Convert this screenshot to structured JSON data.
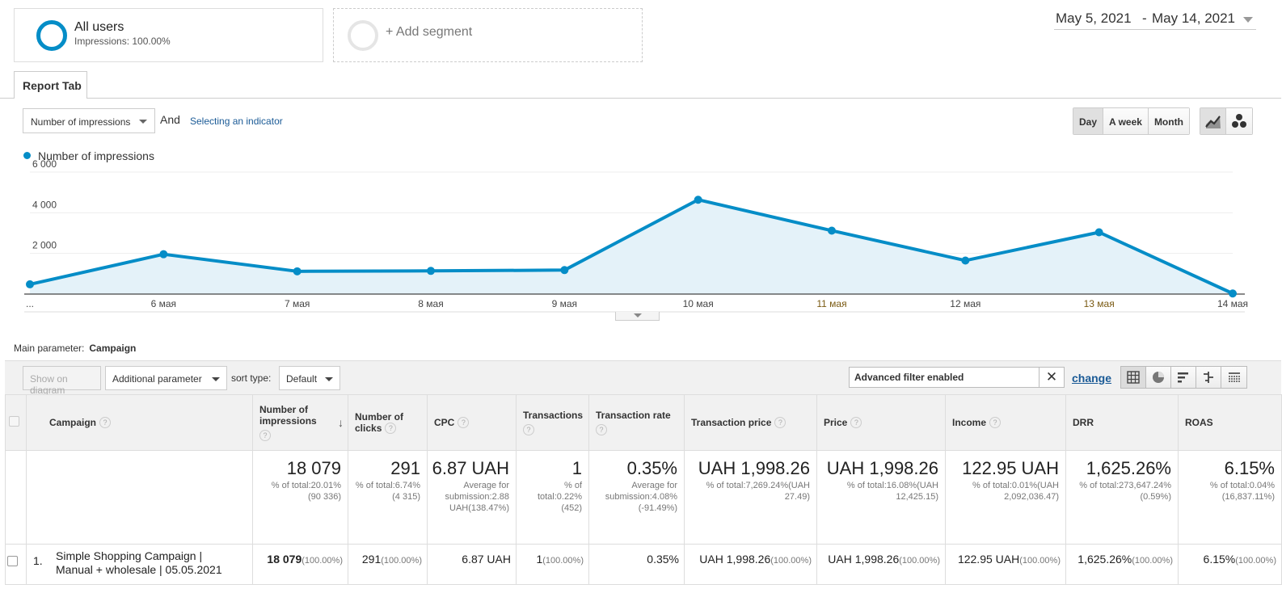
{
  "segments": {
    "all_users": {
      "title": "All users",
      "subtitle": "Impressions: 100.00%"
    },
    "add_segment": {
      "label": "+ Add segment"
    }
  },
  "date_range": {
    "start": "May 5, 2021",
    "separator": "-",
    "end": "May 14, 2021"
  },
  "tabs": {
    "report": "Report Tab"
  },
  "chart_controls": {
    "metric": "Number of impressions",
    "and_label": "And",
    "select_indicator": "Selecting an indicator",
    "periods": [
      "Day",
      "A week",
      "Month"
    ],
    "active_period": "Day"
  },
  "chart_data": {
    "type": "area",
    "series": [
      {
        "name": "Number of impressions",
        "color": "#058dc7",
        "values": [
          480,
          1960,
          1120,
          1140,
          1180,
          4640,
          3120,
          1650,
          3040,
          30
        ]
      }
    ],
    "x": [
      "...",
      "6 мая",
      "7 мая",
      "8 мая",
      "9 мая",
      "10 мая",
      "11 мая",
      "12 мая",
      "13 мая",
      "14 мая"
    ],
    "yticks": [
      "2 000",
      "4 000",
      "6 000"
    ],
    "ytick_values": [
      2000,
      4000,
      6000
    ],
    "ylim": [
      0,
      6000
    ],
    "grid": true,
    "legend": "top-left"
  },
  "main_parameter": {
    "label": "Main parameter:",
    "value": "Campaign"
  },
  "toolbar": {
    "show_on_diagram": "Show on diagram",
    "additional_parameter": "Additional parameter",
    "sort_type_label": "sort type:",
    "sort_type_value": "Default",
    "filter_text": "Advanced filter enabled",
    "filter_clear": "✕",
    "change_link": "change"
  },
  "table": {
    "headers": {
      "campaign": "Campaign",
      "impressions": "Number of impressions",
      "clicks": "Number of clicks",
      "cpc": "CPC",
      "transactions": "Transactions",
      "transaction_rate": "Transaction rate",
      "transaction_price": "Transaction price",
      "price": "Price",
      "income": "Income",
      "drr": "DRR",
      "roas": "ROAS"
    },
    "totals": {
      "impressions": {
        "value": "18 079",
        "sub": "% of total:20.01% (90 336)"
      },
      "clicks": {
        "value": "291",
        "sub": "% of total:6.74%(4 315)"
      },
      "cpc": {
        "value": "6.87 UAH",
        "sub": "Average for submission:2.88 UAH(138.47%)"
      },
      "transactions": {
        "value": "1",
        "sub": "% of total:0.22% (452)"
      },
      "transaction_rate": {
        "value": "0.35%",
        "sub": "Average for submission:4.08% (-91.49%)"
      },
      "transaction_price": {
        "value": "UAH 1,998.26",
        "sub": "% of total:7,269.24%(UAH 27.49)"
      },
      "price": {
        "value": "UAH 1,998.26",
        "sub": "% of total:16.08%(UAH 12,425.15)"
      },
      "income": {
        "value": "122.95 UAH",
        "sub": "% of total:0.01%(UAH 2,092,036.47)"
      },
      "drr": {
        "value": "1,625.26%",
        "sub": "% of total:273,647.24% (0.59%)"
      },
      "roas": {
        "value": "6.15%",
        "sub": "% of total:0.04% (16,837.11%)"
      }
    },
    "rows": [
      {
        "index": "1.",
        "campaign": "Simple Shopping Campaign | Manual + wholesale | 05.05.2021",
        "impressions": "18 079",
        "impressions_pct": "(100.00%)",
        "clicks": "291",
        "clicks_pct": "(100.00%)",
        "cpc": "6.87 UAH",
        "transactions": "1",
        "transactions_pct": "(100.00%)",
        "transaction_rate": "0.35%",
        "transaction_price": "UAH 1,998.26",
        "transaction_price_pct": "(100.00%)",
        "price": "UAH 1,998.26",
        "price_pct": "(100.00%)",
        "income": "122.95 UAH",
        "income_pct": "(100.00%)",
        "drr": "1,625.26%",
        "drr_pct": "(100.00%)",
        "roas": "6.15%",
        "roas_pct": "(100.00%)"
      }
    ]
  }
}
